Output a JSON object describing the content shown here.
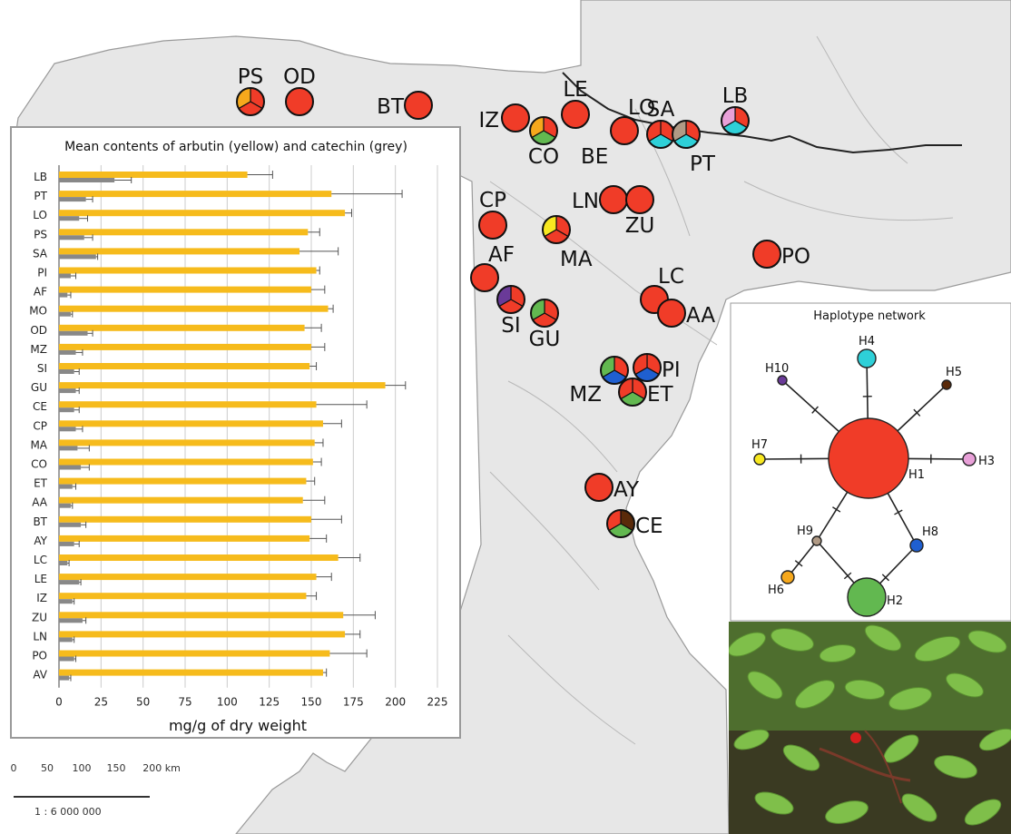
{
  "map": {
    "land_color": "#e7e7e7",
    "sea_color": "#ffffff",
    "site_color": "#f03c28",
    "scale_ticks": [
      "0",
      "50",
      "100",
      "150",
      "200 km"
    ],
    "scale_ratio": "1 : 6 000 000",
    "sites": [
      {
        "code": "PS",
        "slices": [
          "#f03c28",
          "#f03c28",
          "#f6a81c"
        ]
      },
      {
        "code": "OD",
        "slices": [
          "#f03c28"
        ]
      },
      {
        "code": "BT",
        "slices": [
          "#f03c28"
        ]
      },
      {
        "code": "IZ",
        "slices": [
          "#f03c28"
        ]
      },
      {
        "code": "CO",
        "slices": [
          "#f03c28",
          "#62b850",
          "#f6a81c"
        ]
      },
      {
        "code": "LE",
        "slices": [
          "#f03c28"
        ]
      },
      {
        "code": "BE",
        "slices": []
      },
      {
        "code": "LO",
        "slices": [
          "#f03c28"
        ]
      },
      {
        "code": "SA",
        "slices": [
          "#f03c28",
          "#2ed0d8",
          "#f03c28"
        ]
      },
      {
        "code": "PT",
        "slices": [
          "#f03c28",
          "#2ed0d8",
          "#b09a85"
        ]
      },
      {
        "code": "LB",
        "slices": [
          "#f03c28",
          "#2ed0d8",
          "#e8a0d8"
        ]
      },
      {
        "code": "CP",
        "slices": [
          "#f03c28"
        ]
      },
      {
        "code": "MA",
        "slices": [
          "#f03c28",
          "#f03c28",
          "#f8e820"
        ]
      },
      {
        "code": "LN",
        "slices": [
          "#f03c28"
        ]
      },
      {
        "code": "ZU",
        "slices": [
          "#f03c28"
        ]
      },
      {
        "code": "PO",
        "slices": [
          "#f03c28"
        ]
      },
      {
        "code": "AF",
        "slices": [
          "#f03c28"
        ]
      },
      {
        "code": "SI",
        "slices": [
          "#f03c28",
          "#f03c28",
          "#6a3a98"
        ]
      },
      {
        "code": "GU",
        "slices": [
          "#f03c28",
          "#f03c28",
          "#62b850"
        ]
      },
      {
        "code": "LC",
        "slices": [
          "#f03c28"
        ]
      },
      {
        "code": "AA",
        "slices": [
          "#f03c28"
        ]
      },
      {
        "code": "MZ",
        "slices": [
          "#f03c28",
          "#1f5fd0",
          "#62b850"
        ]
      },
      {
        "code": "PI",
        "slices": [
          "#f03c28",
          "#1f5fd0",
          "#f03c28"
        ]
      },
      {
        "code": "ET",
        "slices": [
          "#f03c28",
          "#62b850",
          "#f03c28"
        ]
      },
      {
        "code": "AY",
        "slices": [
          "#f03c28"
        ]
      },
      {
        "code": "CE",
        "slices": [
          "#5a2a0a",
          "#62b850",
          "#f03c28"
        ]
      }
    ]
  },
  "chart_data": {
    "type": "bar",
    "title": "Mean contents of arbutin (yellow) and catechin (grey)",
    "xlabel": "mg/g of dry weight",
    "xlim": [
      0,
      225
    ],
    "xticks": [
      0,
      25,
      50,
      75,
      100,
      125,
      150,
      175,
      200,
      225
    ],
    "grid": true,
    "categories": [
      "LB",
      "PT",
      "LO",
      "PS",
      "SA",
      "PI",
      "AF",
      "MO",
      "OD",
      "MZ",
      "SI",
      "GU",
      "CE",
      "CP",
      "MA",
      "CO",
      "ET",
      "AA",
      "BT",
      "AY",
      "LC",
      "LE",
      "IZ",
      "ZU",
      "LN",
      "PO",
      "AV"
    ],
    "series": [
      {
        "color": "#f6bb1c",
        "values": [
          112,
          162,
          170,
          148,
          143,
          153,
          150,
          160,
          146,
          150,
          149,
          194,
          153,
          157,
          152,
          151,
          147,
          145,
          150,
          149,
          166,
          153,
          147,
          169,
          170,
          161,
          157
        ],
        "errors": [
          15,
          42,
          4,
          7,
          23,
          2,
          8,
          3,
          10,
          8,
          4,
          12,
          30,
          11,
          5,
          5,
          5,
          13,
          18,
          10,
          13,
          9,
          6,
          19,
          9,
          22,
          2
        ]
      },
      {
        "color": "#888888",
        "values": [
          33,
          16,
          12,
          15,
          22,
          7,
          5,
          7,
          17,
          10,
          9,
          10,
          9,
          10,
          11,
          13,
          8,
          7,
          13,
          9,
          5,
          12,
          8,
          14,
          8,
          9,
          6
        ],
        "errors": [
          10,
          4,
          5,
          5,
          1,
          3,
          2,
          1,
          3,
          4,
          3,
          2,
          3,
          4,
          7,
          5,
          2,
          1,
          3,
          3,
          1,
          1,
          1,
          2,
          1,
          1,
          1
        ]
      }
    ]
  },
  "network": {
    "title": "Haplotype network",
    "nodes": [
      {
        "id": "H1",
        "color": "#f03c28"
      },
      {
        "id": "H2",
        "color": "#62b850"
      },
      {
        "id": "H3",
        "color": "#e8a0d8"
      },
      {
        "id": "H4",
        "color": "#2ed0d8"
      },
      {
        "id": "H5",
        "color": "#5a2a0a"
      },
      {
        "id": "H6",
        "color": "#f6a81c"
      },
      {
        "id": "H7",
        "color": "#f8e820"
      },
      {
        "id": "H8",
        "color": "#1f5fd0"
      },
      {
        "id": "H9",
        "color": "#b09a85"
      },
      {
        "id": "H10",
        "color": "#6a3a98"
      }
    ],
    "edges": [
      [
        "H1",
        "H10"
      ],
      [
        "H1",
        "H4"
      ],
      [
        "H1",
        "H5"
      ],
      [
        "H1",
        "H7"
      ],
      [
        "H1",
        "H3"
      ],
      [
        "H1",
        "H9"
      ],
      [
        "H1",
        "H8"
      ],
      [
        "H9",
        "H6"
      ],
      [
        "H9",
        "H2"
      ],
      [
        "H8",
        "H2"
      ]
    ]
  }
}
